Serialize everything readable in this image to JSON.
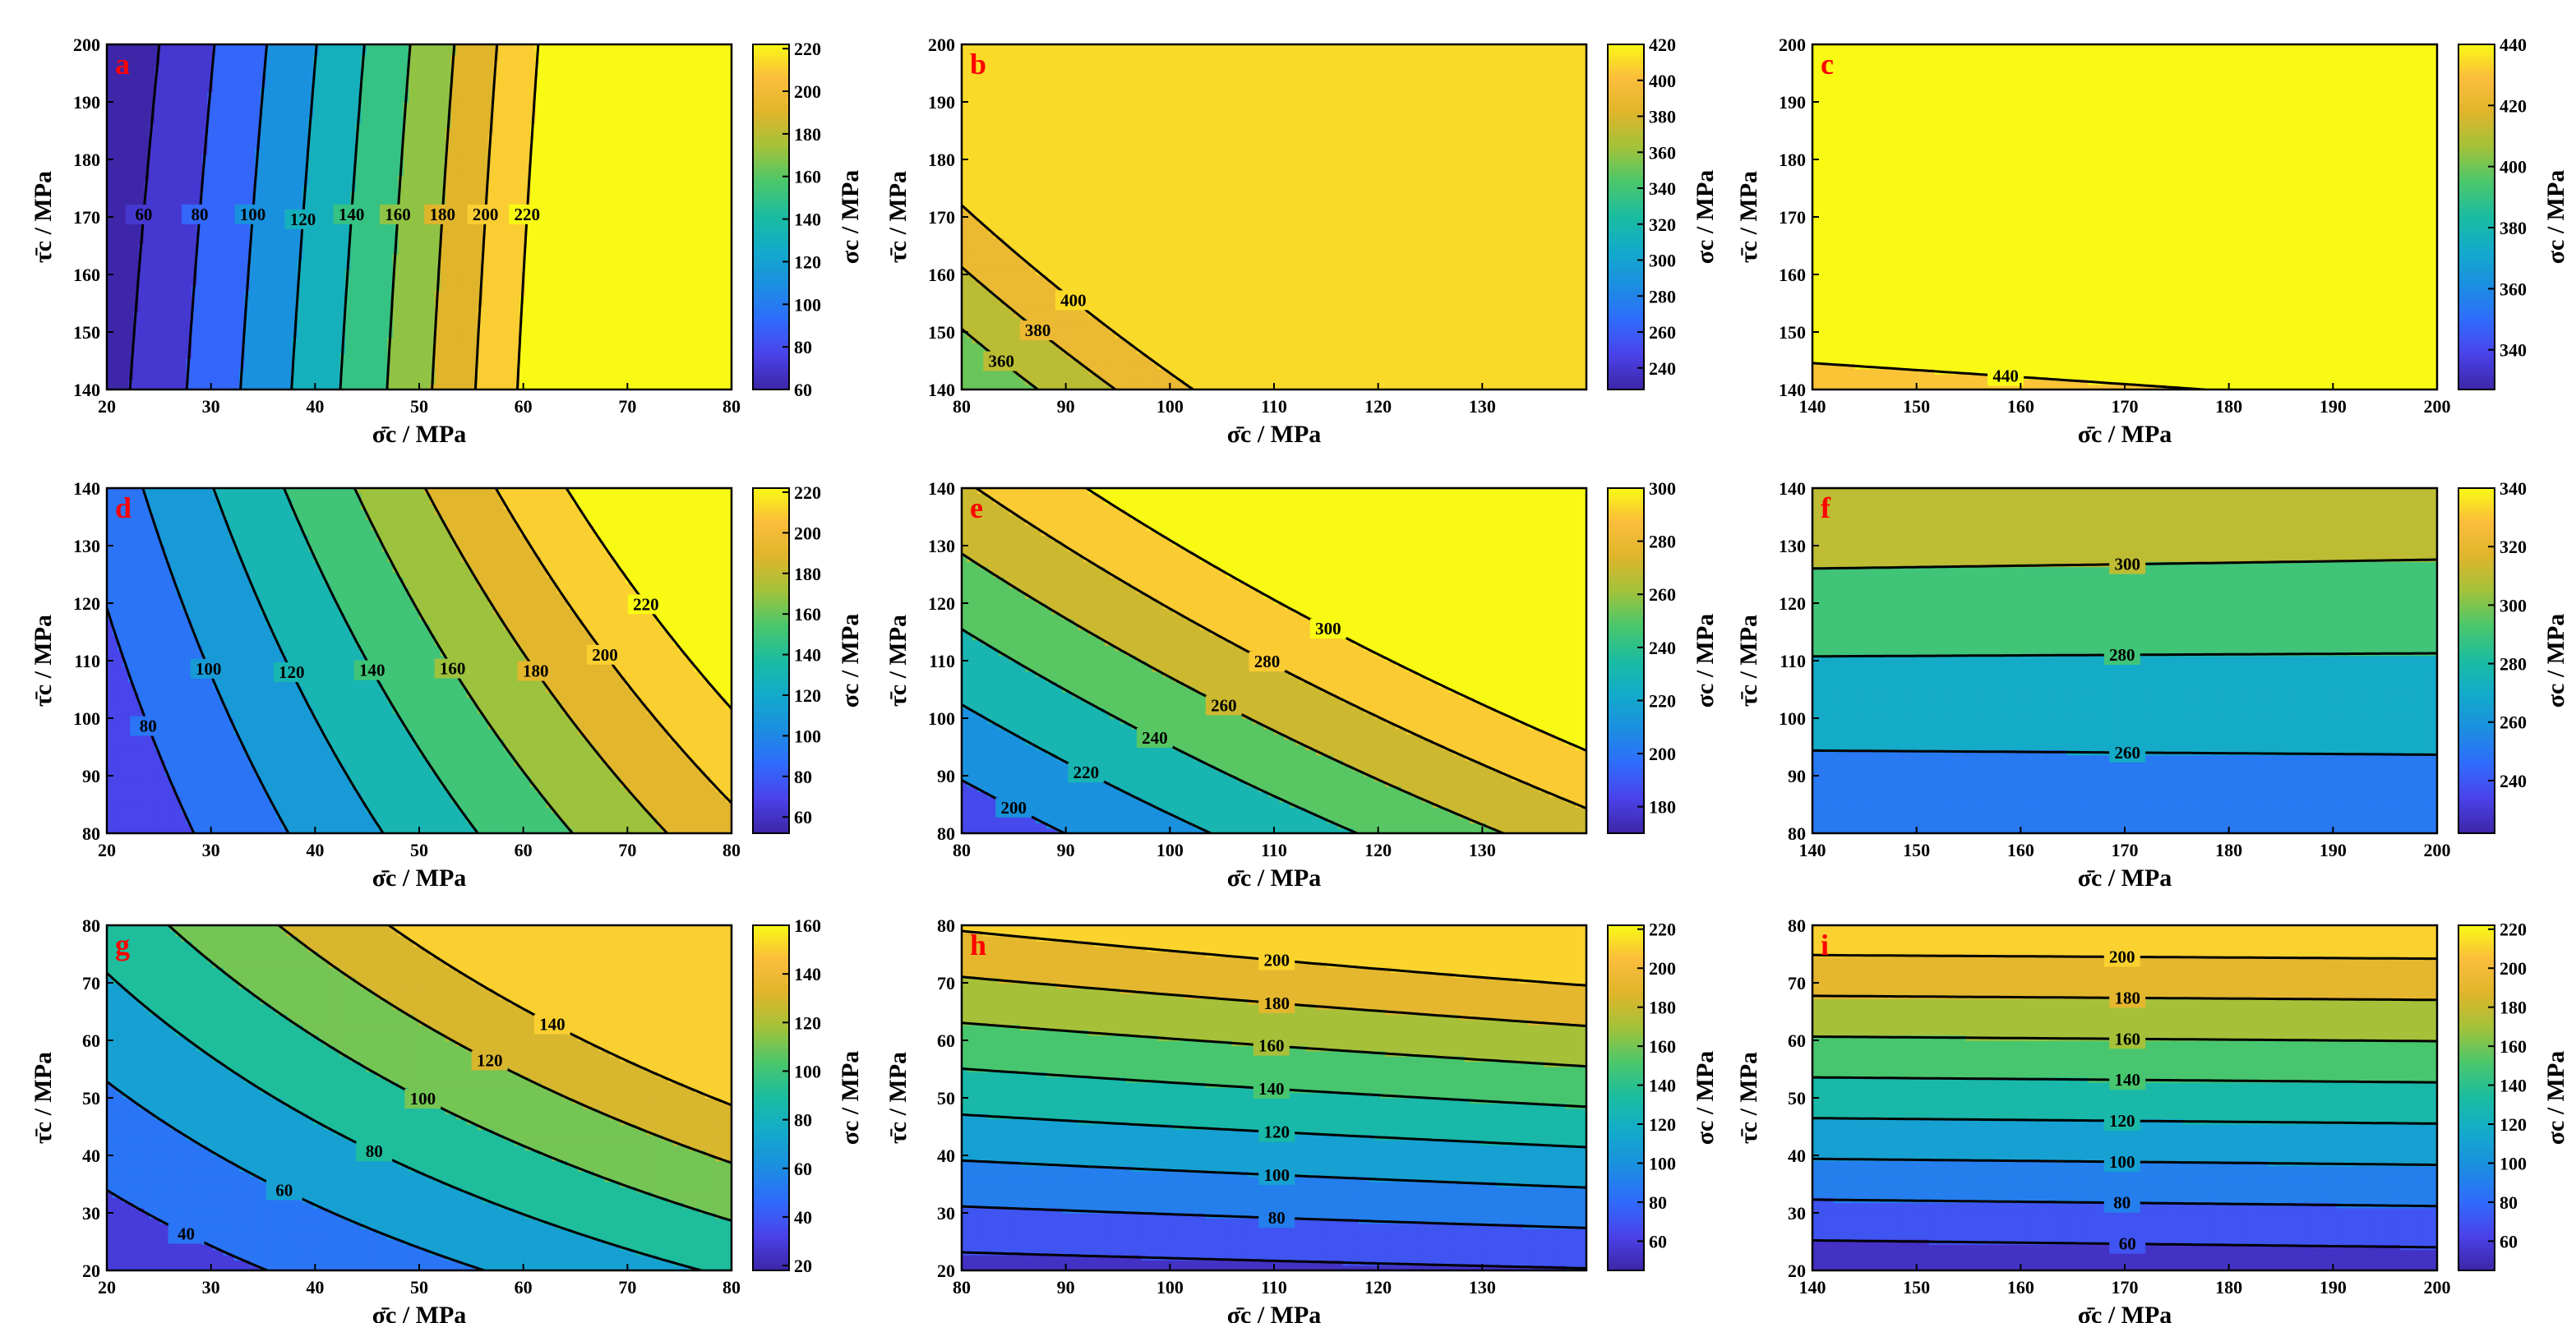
{
  "figure": {
    "x_axis_title": "σ̄c / MPa",
    "y_axis_title": "τ̄c / MPa",
    "colorbar_title": "σc / MPa"
  },
  "colors": {
    "colormap": [
      "#3e26a8",
      "#4a43e9",
      "#2f6cfc",
      "#1b8fe0",
      "#13aacb",
      "#1bbca0",
      "#4bc76b",
      "#a2c23a",
      "#dfb52b",
      "#fbbd3c",
      "#f9fa14"
    ],
    "contour_line": "#000000",
    "panel_label": "#ff0000"
  },
  "chart_data": [
    {
      "id": "a",
      "type": "contour",
      "label": "a",
      "xlim": [
        20,
        80
      ],
      "ylim": [
        140,
        200
      ],
      "xticks": [
        20,
        30,
        40,
        50,
        60,
        70,
        80
      ],
      "yticks": [
        140,
        150,
        160,
        170,
        180,
        190,
        200
      ],
      "coef": {
        "c": 0.667,
        "a": 2.667,
        "b": 0,
        "d": 0,
        "e": 0.02,
        "f": -0.0005
      },
      "levels": [
        60,
        80,
        100,
        120,
        140,
        160,
        180,
        200,
        220
      ],
      "level_labels": [
        "60",
        "80",
        "100",
        "120",
        "140",
        "160",
        "180",
        "200",
        "220"
      ],
      "colorbar": {
        "range": [
          60,
          222
        ],
        "ticks": [
          60,
          80,
          100,
          120,
          140,
          160,
          180,
          200,
          220
        ]
      }
    },
    {
      "id": "b",
      "type": "contour",
      "label": "b",
      "xlim": [
        80,
        140
      ],
      "ylim": [
        140,
        200
      ],
      "xticks": [
        80,
        90,
        100,
        110,
        120,
        130
      ],
      "yticks": [
        140,
        150,
        160,
        170,
        180,
        190,
        200
      ],
      "coef": {
        "c": 0,
        "a": 1,
        "b": 0.9,
        "d": 0.012,
        "e": 0,
        "f": 0
      },
      "levels": [
        240,
        260,
        280,
        300,
        320,
        340,
        360,
        380,
        400
      ],
      "level_labels": [
        "240",
        "260",
        "280",
        "300",
        "320",
        "340",
        "360",
        "380",
        "400"
      ],
      "colorbar": {
        "range": [
          228,
          420
        ],
        "ticks": [
          240,
          260,
          280,
          300,
          320,
          340,
          360,
          380,
          400,
          420
        ]
      }
    },
    {
      "id": "c",
      "type": "contour",
      "label": "c",
      "xlim": [
        140,
        200
      ],
      "ylim": [
        140,
        200
      ],
      "xticks": [
        140,
        150,
        160,
        170,
        180,
        190,
        200
      ],
      "yticks": [
        140,
        150,
        160,
        170,
        180,
        190,
        200
      ],
      "coef": {
        "c": 180,
        "a": 0.25,
        "b": 1.05,
        "d": 0,
        "e": 0,
        "f": 0.0035
      },
      "levels": [
        340,
        360,
        380,
        400,
        420,
        440
      ],
      "level_labels": [
        "340",
        "360",
        "380",
        "400",
        "420",
        "440"
      ],
      "colorbar": {
        "range": [
          327,
          440
        ],
        "ticks": [
          340,
          360,
          380,
          400,
          420,
          440
        ]
      }
    },
    {
      "id": "d",
      "type": "contour",
      "label": "d",
      "xlim": [
        20,
        80
      ],
      "ylim": [
        80,
        140
      ],
      "xticks": [
        20,
        30,
        40,
        50,
        60,
        70,
        80
      ],
      "yticks": [
        80,
        90,
        100,
        110,
        120,
        130,
        140
      ],
      "coef": {
        "c": 0,
        "a": 1.2,
        "b": 0.22,
        "d": 0.0125,
        "e": 0,
        "f": 0
      },
      "levels": [
        60,
        80,
        100,
        120,
        140,
        160,
        180,
        200,
        220
      ],
      "level_labels": [
        "60",
        "80",
        "100",
        "120",
        "140",
        "160",
        "180",
        "200",
        "220"
      ],
      "colorbar": {
        "range": [
          52,
          222
        ],
        "ticks": [
          60,
          80,
          100,
          120,
          140,
          160,
          180,
          200,
          220
        ]
      }
    },
    {
      "id": "e",
      "type": "contour",
      "label": "e",
      "xlim": [
        80,
        140
      ],
      "ylim": [
        80,
        140
      ],
      "xticks": [
        80,
        90,
        100,
        110,
        120,
        130
      ],
      "yticks": [
        80,
        90,
        100,
        110,
        120,
        130,
        140
      ],
      "coef": {
        "c": 0,
        "a": 0.8,
        "b": 0.9,
        "d": 0.0078,
        "e": 0,
        "f": 0
      },
      "levels": [
        200,
        220,
        240,
        260,
        280,
        300
      ],
      "level_labels": [
        "200",
        "220",
        "240",
        "260",
        "280",
        "300"
      ],
      "colorbar": {
        "range": [
          170,
          300
        ],
        "ticks": [
          180,
          200,
          220,
          240,
          260,
          280,
          300
        ]
      }
    },
    {
      "id": "f",
      "type": "contour",
      "label": "f",
      "xlim": [
        140,
        200
      ],
      "ylim": [
        80,
        140
      ],
      "xticks": [
        140,
        150,
        160,
        170,
        180,
        190,
        200
      ],
      "yticks": [
        80,
        90,
        100,
        110,
        120,
        130,
        140
      ],
      "coef": {
        "c": 153,
        "a": 0.15,
        "b": 0.85,
        "d": -0.00145,
        "e": 0,
        "f": 0.0028
      },
      "levels": [
        240,
        260,
        280,
        300,
        320,
        340
      ],
      "level_labels": [
        "240",
        "260",
        "280",
        "300",
        "320",
        "340"
      ],
      "colorbar": {
        "range": [
          222,
          340
        ],
        "ticks": [
          240,
          260,
          280,
          300,
          320,
          340
        ]
      }
    },
    {
      "id": "g",
      "type": "contour",
      "label": "g",
      "xlim": [
        20,
        80
      ],
      "ylim": [
        20,
        80
      ],
      "xticks": [
        20,
        30,
        40,
        50,
        60,
        70,
        80
      ],
      "yticks": [
        20,
        30,
        40,
        50,
        60,
        70,
        80
      ],
      "coef": {
        "c": -9,
        "a": 0.65,
        "b": 0.75,
        "d": 0.0155,
        "e": 0,
        "f": 0
      },
      "levels": [
        40,
        60,
        80,
        100,
        120,
        140
      ],
      "level_labels": [
        "40",
        "60",
        "80",
        "100",
        "120",
        "140"
      ],
      "colorbar": {
        "range": [
          18,
          160
        ],
        "ticks": [
          20,
          40,
          60,
          80,
          100,
          120,
          140,
          160
        ]
      }
    },
    {
      "id": "h",
      "type": "contour",
      "label": "h",
      "xlim": [
        80,
        140
      ],
      "ylim": [
        20,
        80
      ],
      "xticks": [
        80,
        90,
        100,
        110,
        120,
        130
      ],
      "yticks": [
        20,
        30,
        40,
        50,
        60,
        70,
        80
      ],
      "coef": {
        "c": 2,
        "a": 0,
        "b": 2.05,
        "d": 0.0057,
        "e": 0,
        "f": 0
      },
      "levels": [
        60,
        80,
        100,
        120,
        140,
        160,
        180,
        200
      ],
      "level_labels": [
        "60",
        "80",
        "100",
        "120",
        "140",
        "160",
        "180",
        "200"
      ],
      "colorbar": {
        "range": [
          45,
          222
        ],
        "ticks": [
          60,
          80,
          100,
          120,
          140,
          160,
          180,
          200,
          220
        ]
      }
    },
    {
      "id": "i",
      "type": "contour",
      "label": "i",
      "xlim": [
        140,
        200
      ],
      "ylim": [
        20,
        80
      ],
      "xticks": [
        140,
        150,
        160,
        170,
        180,
        190,
        200
      ],
      "yticks": [
        20,
        30,
        40,
        50,
        60,
        70,
        80
      ],
      "coef": {
        "c": -21,
        "a": 0.07,
        "b": 2.9,
        "d": -0.00055,
        "e": 0,
        "f": 0
      },
      "levels": [
        60,
        80,
        100,
        120,
        140,
        160,
        180,
        200,
        220
      ],
      "level_labels": [
        "60",
        "80",
        "100",
        "120",
        "140",
        "160",
        "180",
        "200",
        "220"
      ],
      "colorbar": {
        "range": [
          45,
          222
        ],
        "ticks": [
          60,
          80,
          100,
          120,
          140,
          160,
          180,
          200,
          220
        ]
      }
    }
  ]
}
